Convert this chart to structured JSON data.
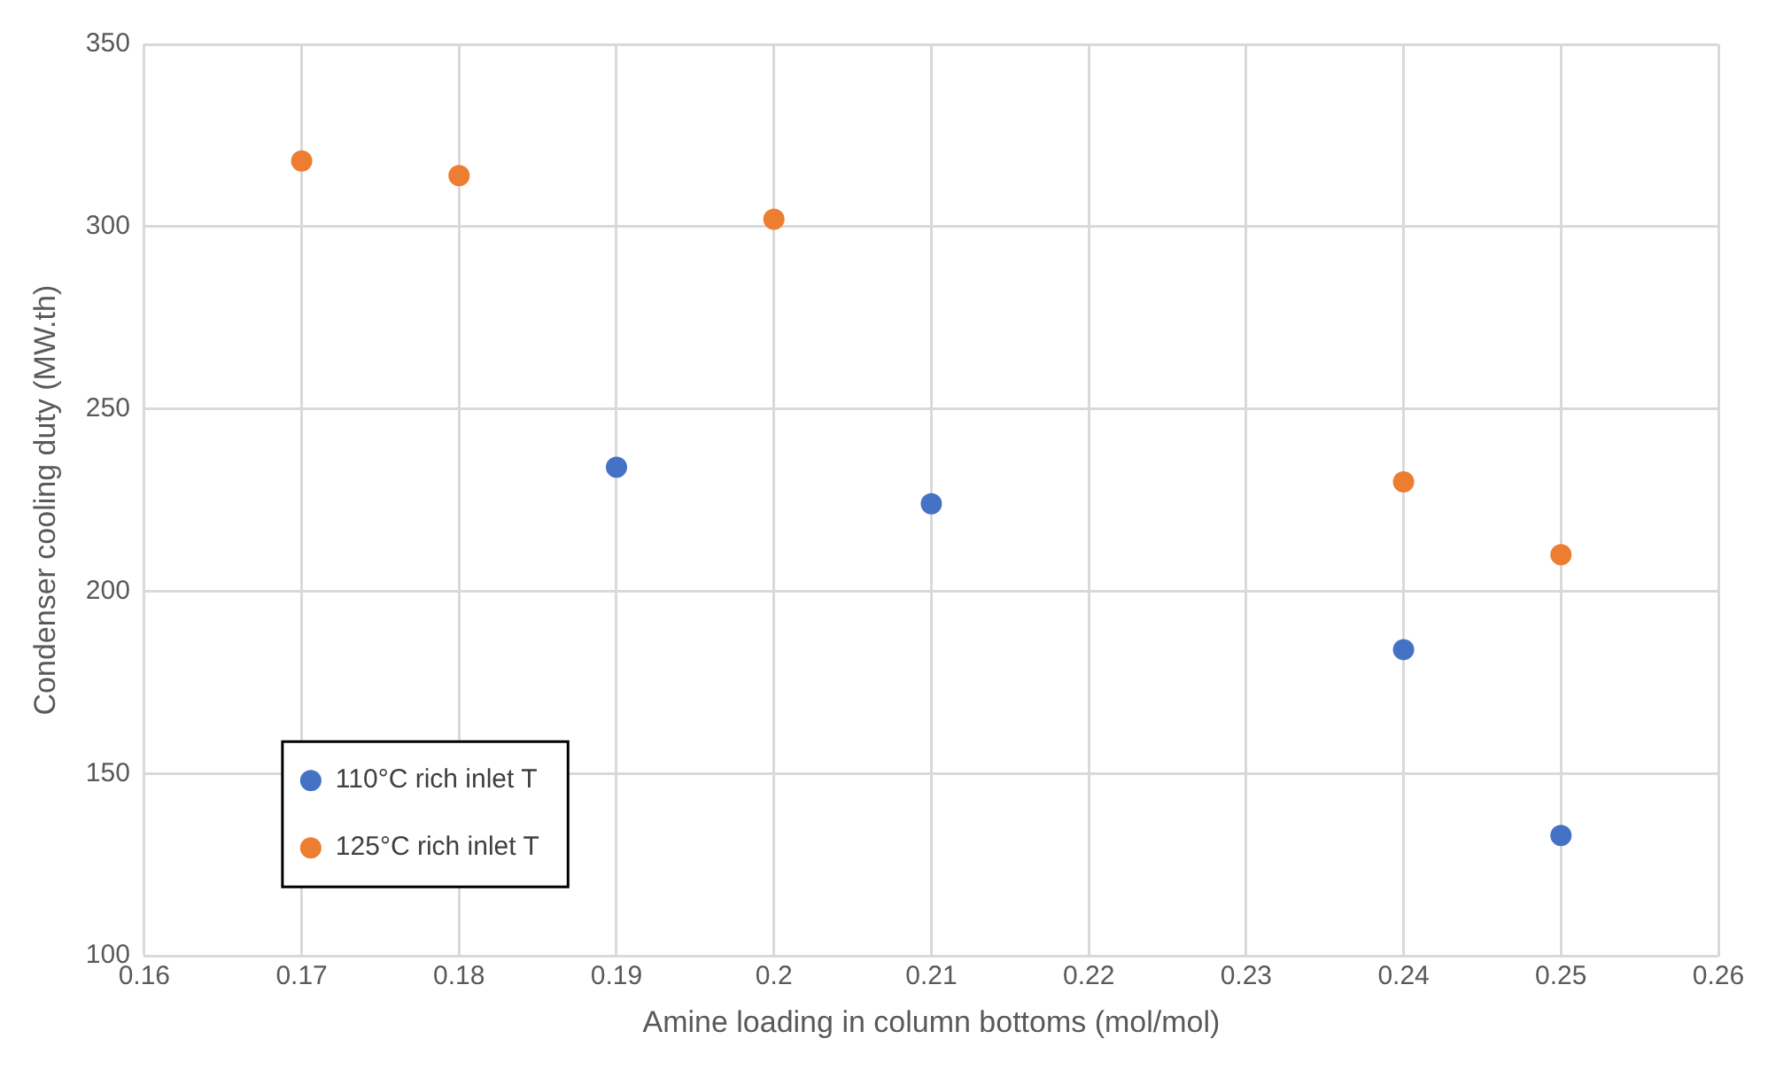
{
  "chart_data": {
    "type": "scatter",
    "xlabel": "Amine loading in column bottoms (mol/mol)",
    "ylabel": "Condenser cooling duty (MW.th)",
    "series": [
      {
        "name": "110°C rich inlet T",
        "color": "#4472c4",
        "x": [
          0.19,
          0.21,
          0.24,
          0.25
        ],
        "values": [
          234,
          224,
          184,
          133
        ]
      },
      {
        "name": "125°C rich inlet T",
        "color": "#ed7d31",
        "x": [
          0.17,
          0.18,
          0.2,
          0.24,
          0.25
        ],
        "values": [
          318,
          314,
          302,
          230,
          210
        ]
      }
    ],
    "xlim": [
      0.16,
      0.26
    ],
    "xticks": [
      0.16,
      0.17,
      0.18,
      0.19,
      0.2,
      0.21,
      0.22,
      0.23,
      0.24,
      0.25,
      0.26
    ],
    "ylim": [
      100,
      350
    ],
    "yticks": [
      100,
      150,
      200,
      250,
      300,
      350
    ],
    "grid": true,
    "legend": "bottom left",
    "marker": "circle"
  }
}
